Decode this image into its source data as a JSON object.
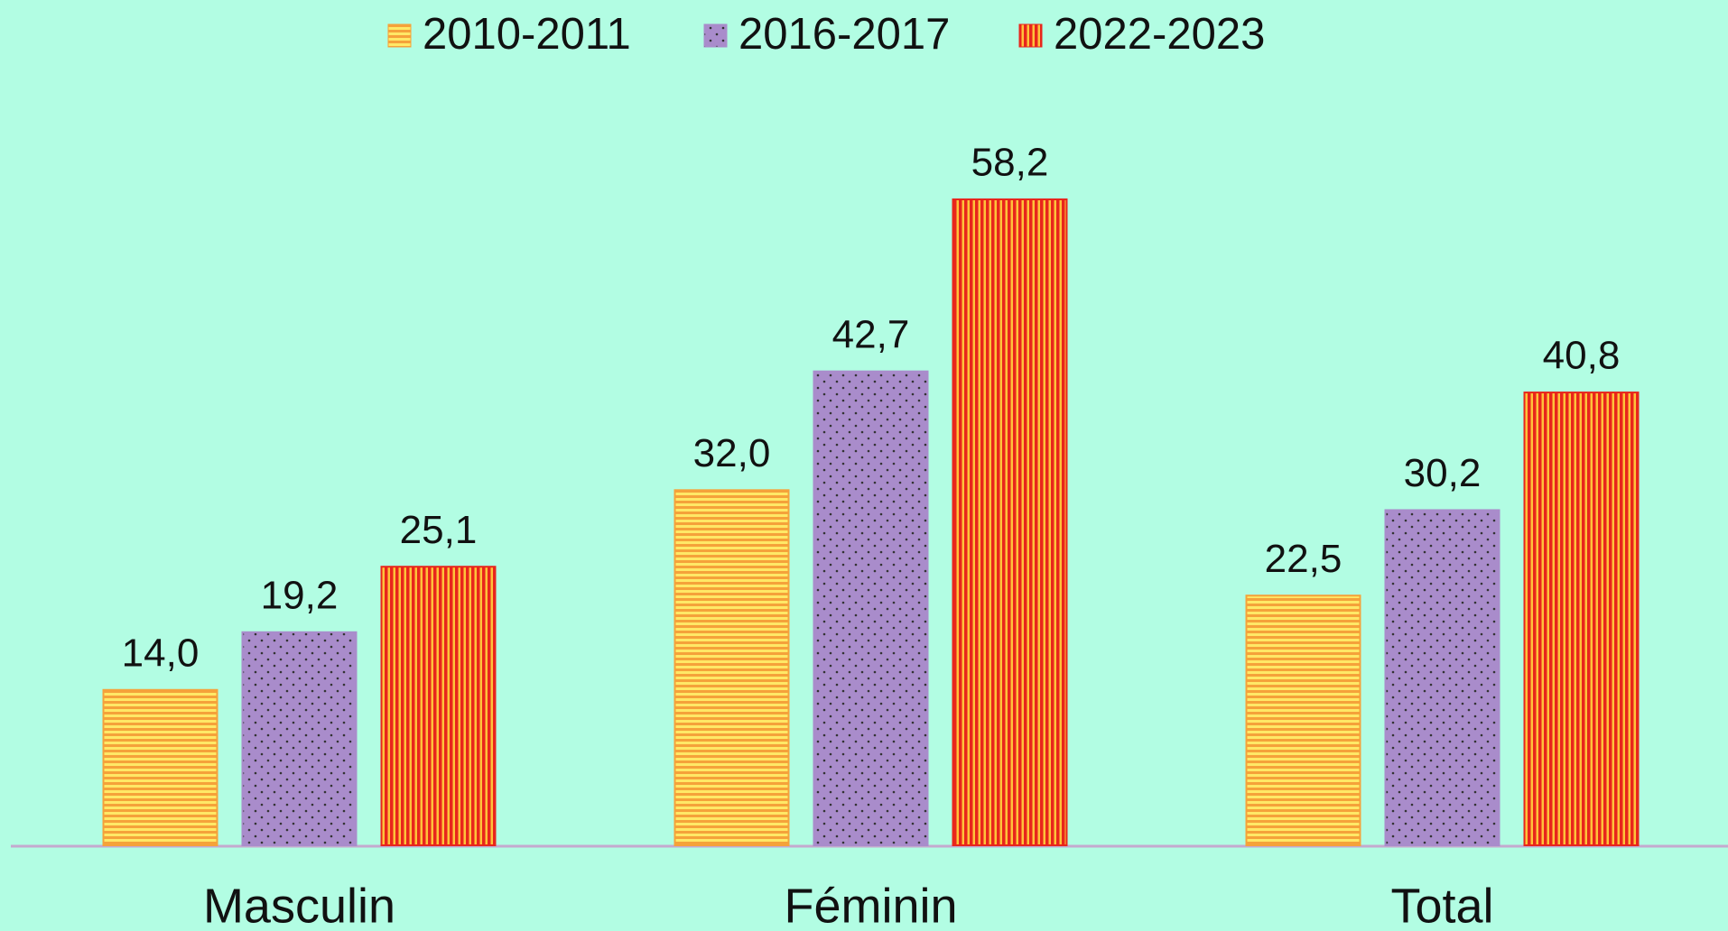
{
  "chart_data": {
    "type": "bar",
    "categories": [
      "Masculin",
      "Féminin",
      "Total"
    ],
    "series": [
      {
        "name": "2010-2011",
        "color": "#f5a23a",
        "values": [
          14.0,
          32.0,
          22.5
        ],
        "value_labels": [
          "14,0",
          "32,0",
          "22,5"
        ]
      },
      {
        "name": "2016-2017",
        "color": "#a98ccb",
        "values": [
          19.2,
          42.7,
          30.2
        ],
        "value_labels": [
          "19,2",
          "42,7",
          "30,2"
        ]
      },
      {
        "name": "2022-2023",
        "color": "#e8261c",
        "values": [
          25.1,
          58.2,
          40.8
        ],
        "value_labels": [
          "25,1",
          "58,2",
          "40,8"
        ]
      }
    ],
    "legend": "top"
  }
}
